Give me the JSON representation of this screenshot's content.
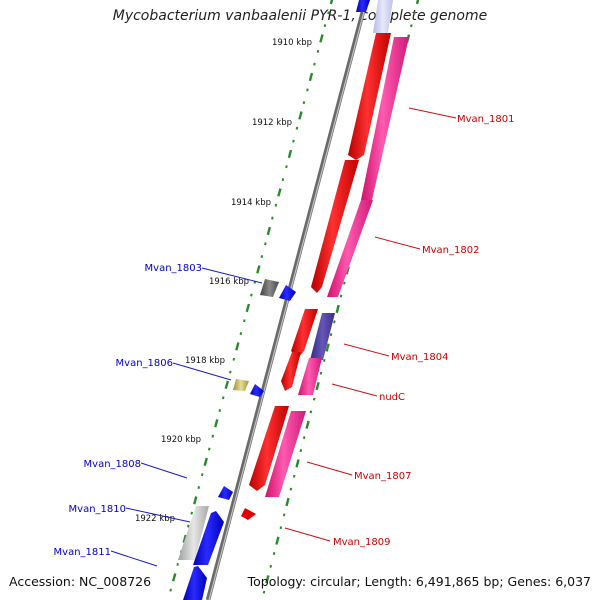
{
  "title": "Mycobacterium vanbaalenii PYR-1, complete genome",
  "accession_text": "Accession: NC_008726",
  "summary_text": "Topology: circular; Length: 6,491,865 bp; Genes: 6,037",
  "ruler_labels": [
    "1910 kbp",
    "1912 kbp",
    "1914 kbp",
    "1916 kbp",
    "1918 kbp",
    "1920 kbp",
    "1922 kbp"
  ],
  "colors": {
    "forward_gene": "#ff0000",
    "forward_gene_alt": "#ff3399",
    "reverse_gene": "#0000ee",
    "gray_gene": "#808080",
    "backbone": "#888888",
    "tick": "#2a8a2a"
  },
  "genes_right": [
    {
      "label": "Mvan_1801",
      "color": "#cc0000"
    },
    {
      "label": "Mvan_1802",
      "color": "#cc0000"
    },
    {
      "label": "Mvan_1804",
      "color": "#cc0000"
    },
    {
      "label": "nudC",
      "color": "#cc0000"
    },
    {
      "label": "Mvan_1807",
      "color": "#cc0000"
    },
    {
      "label": "Mvan_1809",
      "color": "#cc0000"
    }
  ],
  "genes_left": [
    {
      "label": "Mvan_1803",
      "color": "#0000cc"
    },
    {
      "label": "Mvan_1806",
      "color": "#0000cc"
    },
    {
      "label": "Mvan_1808",
      "color": "#0000cc"
    },
    {
      "label": "Mvan_1810",
      "color": "#0000cc"
    },
    {
      "label": "Mvan_1811",
      "color": "#0000cc"
    }
  ]
}
